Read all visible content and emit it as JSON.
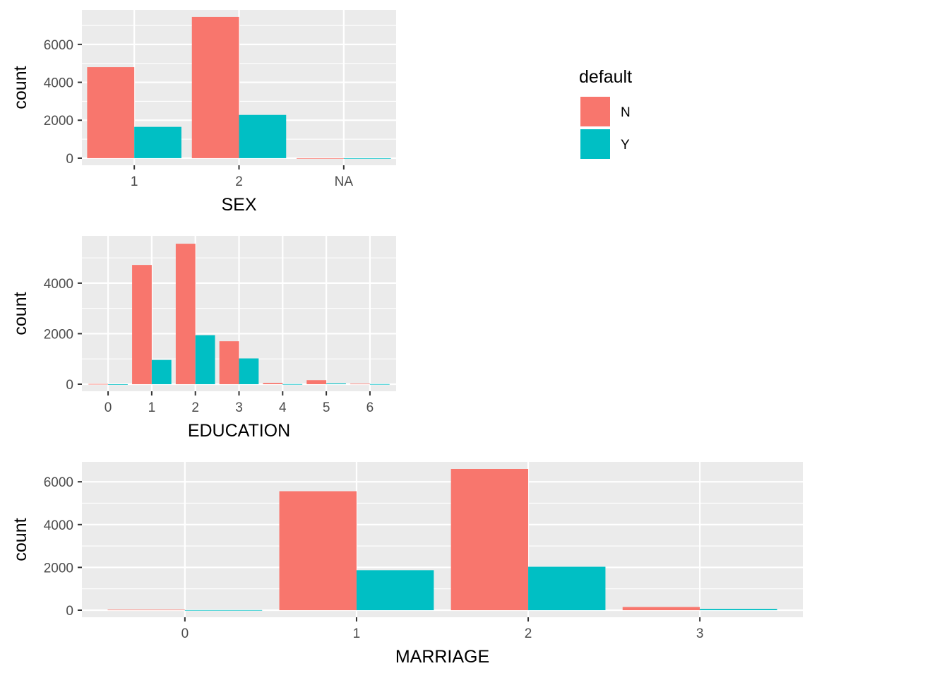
{
  "colors": {
    "N": "#F8766D",
    "Y": "#00BFC4",
    "panel": "#EBEBEB",
    "grid": "#FFFFFF"
  },
  "legend": {
    "title": "default",
    "items": [
      {
        "key": "N",
        "label": "N",
        "color": "#F8766D"
      },
      {
        "key": "Y",
        "label": "Y",
        "color": "#00BFC4"
      }
    ]
  },
  "chart_data": [
    {
      "type": "bar",
      "xlabel": "SEX",
      "ylabel": "count",
      "categories": [
        "1",
        "2",
        "NA"
      ],
      "series": [
        {
          "name": "N",
          "values": [
            4800,
            7450,
            0
          ]
        },
        {
          "name": "Y",
          "values": [
            1650,
            2280,
            0
          ]
        }
      ],
      "ylim": [
        0,
        7450
      ],
      "yticks": [
        "0",
        "2000",
        "4000",
        "6000"
      ]
    },
    {
      "type": "bar",
      "xlabel": "EDUCATION",
      "ylabel": "count",
      "categories": [
        "0",
        "1",
        "2",
        "3",
        "4",
        "5",
        "6"
      ],
      "series": [
        {
          "name": "N",
          "values": [
            10,
            4720,
            5560,
            1700,
            50,
            160,
            20
          ]
        },
        {
          "name": "Y",
          "values": [
            0,
            960,
            1940,
            1020,
            5,
            30,
            5
          ]
        }
      ],
      "ylim": [
        0,
        5600
      ],
      "yticks": [
        "0",
        "2000",
        "4000"
      ]
    },
    {
      "type": "bar",
      "xlabel": "MARRIAGE",
      "ylabel": "count",
      "categories": [
        "0",
        "1",
        "2",
        "3"
      ],
      "series": [
        {
          "name": "N",
          "values": [
            25,
            5560,
            6600,
            150
          ]
        },
        {
          "name": "Y",
          "values": [
            5,
            1870,
            2030,
            60
          ]
        }
      ],
      "ylim": [
        0,
        6600
      ],
      "yticks": [
        "0",
        "2000",
        "4000",
        "6000"
      ]
    }
  ]
}
